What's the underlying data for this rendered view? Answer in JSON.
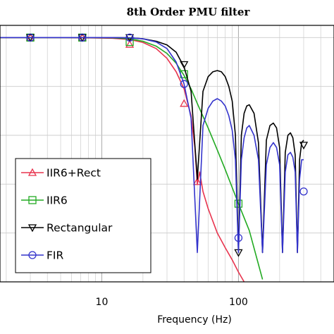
{
  "chart_data": {
    "type": "line",
    "title": "8th Order PMU filter",
    "xlabel": "Frequency (Hz)",
    "ylabel": "",
    "x_scale": "log",
    "xlim": [
      1.8,
      500
    ],
    "ylim": [
      -100,
      5
    ],
    "x_tick_labels": [
      {
        "value": 10,
        "label": "10"
      },
      {
        "value": 100,
        "label": "100"
      }
    ],
    "grid": true,
    "legend_position": "lower-left",
    "series": [
      {
        "name": "IIR6+Rect",
        "color": "#e8344e",
        "marker": "triangle",
        "x": [
          1.8,
          3,
          5,
          8,
          12,
          16,
          20,
          25,
          30,
          35,
          40,
          45,
          48,
          50,
          52,
          55,
          60,
          70,
          80,
          90,
          100,
          110,
          120
        ],
        "y": [
          0,
          0,
          0,
          -0.1,
          -0.3,
          -0.8,
          -2,
          -4.5,
          -8.5,
          -14,
          -21,
          -32,
          -45,
          -60,
          -55,
          -63,
          -70,
          -80,
          -86,
          -91,
          -96,
          -100,
          -104
        ],
        "markers_x": [
          3,
          7.2,
          16,
          40,
          50
        ],
        "markers_y": [
          0,
          -0.05,
          -2.8,
          -27,
          -59
        ]
      },
      {
        "name": "IIR6",
        "color": "#22aa22",
        "marker": "square",
        "x": [
          1.8,
          3,
          5,
          8,
          12,
          16,
          20,
          25,
          30,
          35,
          40,
          45,
          50,
          60,
          70,
          80,
          100,
          120,
          150
        ],
        "y": [
          0,
          0,
          0,
          0,
          -0.1,
          -0.5,
          -1.5,
          -3.5,
          -6.5,
          -10.5,
          -15.5,
          -21,
          -27,
          -37,
          -46,
          -54,
          -68,
          -79,
          -99
        ],
        "markers_x": [
          3,
          7.2,
          16,
          40,
          100
        ],
        "markers_y": [
          0,
          0,
          -1.8,
          -15,
          -68
        ]
      },
      {
        "name": "Rectangular",
        "color": "#000000",
        "marker": "triangle-down",
        "x": [
          1.8,
          3,
          5,
          8,
          12,
          16,
          20,
          25,
          30,
          35,
          40,
          45,
          50,
          55,
          60,
          65,
          70,
          75,
          80,
          85,
          90,
          95,
          100,
          105,
          110,
          115,
          120,
          130,
          140,
          150,
          160,
          170,
          180,
          190,
          200,
          210,
          220,
          230,
          240,
          250,
          260,
          270,
          280,
          290,
          300
        ],
        "y": [
          0,
          0,
          0,
          0,
          0,
          -0.1,
          -0.5,
          -1.5,
          -3,
          -6,
          -12,
          -22,
          -58,
          -22,
          -16,
          -14,
          -13.5,
          -14,
          -16,
          -20,
          -26,
          -40,
          -88,
          -40,
          -31,
          -28,
          -27.5,
          -31,
          -43,
          -88,
          -42,
          -36,
          -35,
          -37,
          -45,
          -88,
          -47,
          -40,
          -39,
          -41,
          -48,
          -88,
          -50,
          -43,
          -42
        ],
        "markers_x": [
          3,
          7.2,
          16,
          40,
          100,
          300
        ],
        "markers_y": [
          0,
          0,
          0,
          -11,
          -88,
          -44
        ]
      },
      {
        "name": "FIR",
        "color": "#3333cc",
        "marker": "circle",
        "x": [
          1.8,
          3,
          5,
          8,
          12,
          16,
          20,
          25,
          30,
          35,
          40,
          45,
          50,
          55,
          60,
          65,
          70,
          75,
          80,
          85,
          90,
          95,
          100,
          105,
          110,
          115,
          120,
          130,
          140,
          150,
          160,
          170,
          180,
          190,
          200,
          210,
          220,
          230,
          240,
          250,
          260,
          270,
          280,
          290,
          300
        ],
        "y": [
          0,
          0,
          0,
          0,
          0,
          -0.1,
          -0.5,
          -1.8,
          -4.5,
          -10,
          -19,
          -33,
          -88,
          -36,
          -29,
          -26,
          -25,
          -26,
          -28,
          -32,
          -38,
          -50,
          -88,
          -50,
          -41,
          -37,
          -36,
          -40,
          -50,
          -88,
          -52,
          -45,
          -43,
          -45,
          -52,
          -88,
          -55,
          -48,
          -47,
          -49,
          -55,
          -88,
          -58,
          -50,
          -50
        ],
        "markers_x": [
          3,
          7.2,
          16,
          40,
          100,
          300
        ],
        "markers_y": [
          0,
          0,
          0,
          -19,
          -82,
          -63
        ]
      }
    ]
  }
}
